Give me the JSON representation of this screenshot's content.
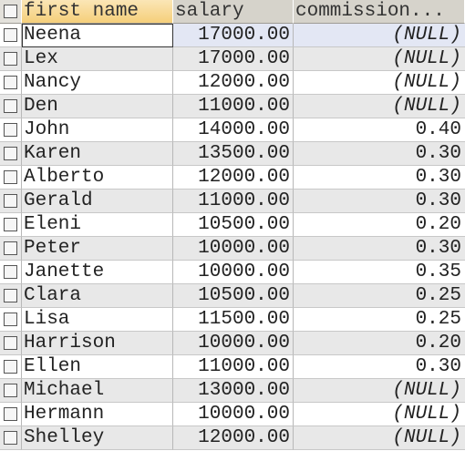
{
  "headers": [
    "first name",
    "salary",
    "commission..."
  ],
  "rows": [
    {
      "first_name": "Neena",
      "salary": "17000.00",
      "commission": "(NULL)"
    },
    {
      "first_name": "Lex",
      "salary": "17000.00",
      "commission": "(NULL)"
    },
    {
      "first_name": "Nancy",
      "salary": "12000.00",
      "commission": "(NULL)"
    },
    {
      "first_name": "Den",
      "salary": "11000.00",
      "commission": "(NULL)"
    },
    {
      "first_name": "John",
      "salary": "14000.00",
      "commission": "0.40"
    },
    {
      "first_name": "Karen",
      "salary": "13500.00",
      "commission": "0.30"
    },
    {
      "first_name": "Alberto",
      "salary": "12000.00",
      "commission": "0.30"
    },
    {
      "first_name": "Gerald",
      "salary": "11000.00",
      "commission": "0.30"
    },
    {
      "first_name": "Eleni",
      "salary": "10500.00",
      "commission": "0.20"
    },
    {
      "first_name": "Peter",
      "salary": "10000.00",
      "commission": "0.30"
    },
    {
      "first_name": "Janette",
      "salary": "10000.00",
      "commission": "0.35"
    },
    {
      "first_name": "Clara",
      "salary": "10500.00",
      "commission": "0.25"
    },
    {
      "first_name": "Lisa",
      "salary": "11500.00",
      "commission": "0.25"
    },
    {
      "first_name": "Harrison",
      "salary": "10000.00",
      "commission": "0.20"
    },
    {
      "first_name": "Ellen",
      "salary": "11000.00",
      "commission": "0.30"
    },
    {
      "first_name": "Michael",
      "salary": "13000.00",
      "commission": "(NULL)"
    },
    {
      "first_name": "Hermann",
      "salary": "10000.00",
      "commission": "(NULL)"
    },
    {
      "first_name": "Shelley",
      "salary": "12000.00",
      "commission": "(NULL)"
    }
  ],
  "colors": {
    "header_bg": "#d6d3cb",
    "sorted_header": "#f5cf7a",
    "alt_row": "#e8e8e8",
    "selected_cell": "#e3e7f4"
  },
  "icons": {
    "row_select": "checkbox-icon",
    "select_all": "checkbox-icon"
  }
}
